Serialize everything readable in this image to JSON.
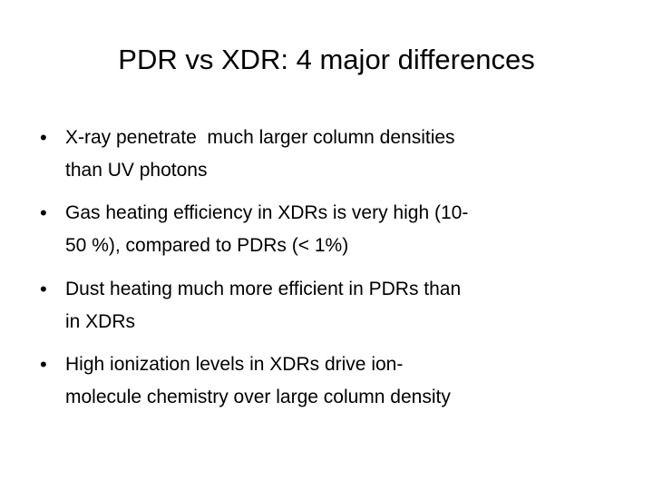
{
  "title": "PDR vs XDR: 4 major differences",
  "bullets": [
    {
      "lines": [
        "X-ray penetrate  much larger column densities",
        "than UV photons"
      ]
    },
    {
      "lines": [
        "Gas heating efficiency in XDRs is very high (10-",
        "50 %), compared to PDRs (< 1%)"
      ]
    },
    {
      "lines": [
        "Dust heating much more efficient in PDRs than",
        "in XDRs"
      ]
    },
    {
      "lines": [
        "High ionization levels in XDRs drive ion-",
        "molecule chemistry over large column density"
      ]
    }
  ]
}
